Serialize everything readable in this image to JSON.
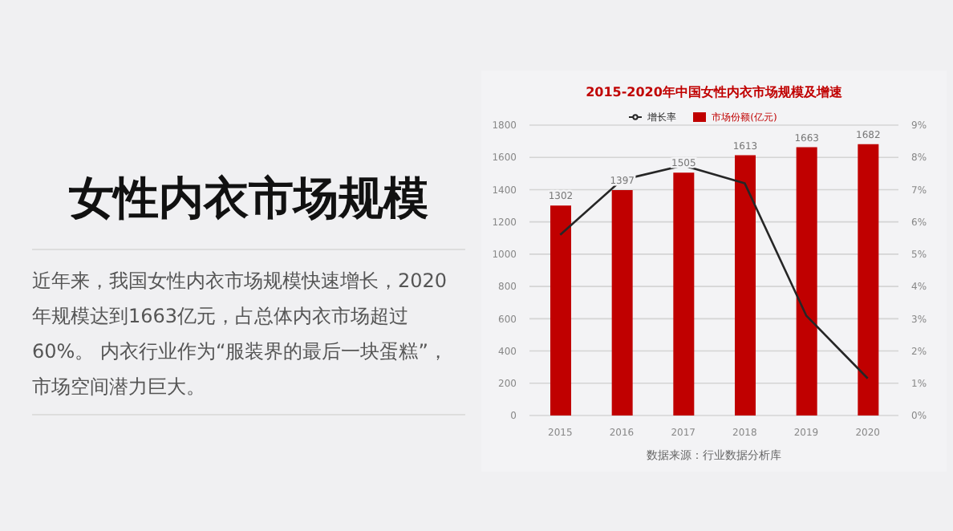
{
  "chart_data": {
    "type": "bar",
    "title": "2015-2020年中国女性内衣市场规模及增速",
    "annotations": [
      "女性内衣市场规模",
      "近年来，我国女性内衣市场规模快速增长，2020年规模达到1663亿元，占总体内衣市场超过60%。 内衣行业作为“服装界的最后一块蛋糕”，市场空间潜力巨大。",
      "数据来源：行业数据分析库"
    ],
    "categories": [
      "2015",
      "2016",
      "2017",
      "2018",
      "2019",
      "2020"
    ],
    "series": [
      {
        "name": "市场份额(亿元)",
        "color": "#c00000",
        "values": [
          1302,
          1397,
          1505,
          1613,
          1663,
          1682
        ],
        "value_labels": [
          "1302",
          "1397",
          "1505",
          "1613",
          "1663",
          "1682"
        ]
      },
      {
        "name": "增长率",
        "type": "line",
        "axis": "y2",
        "color": "#262626",
        "values": [
          5.6,
          7.3,
          7.75,
          7.2,
          3.1,
          1.15
        ]
      }
    ],
    "ylim": [
      0,
      1800
    ],
    "yticks": [
      0,
      200,
      400,
      600,
      800,
      1000,
      1200,
      1400,
      1600,
      1800
    ],
    "y2lim": [
      0,
      9
    ],
    "y2ticks": [
      {
        "value": 0,
        "label": "0%"
      },
      {
        "value": 1,
        "label": "1%"
      },
      {
        "value": 2,
        "label": "2%"
      },
      {
        "value": 3,
        "label": "3%"
      },
      {
        "value": 4,
        "label": "4%"
      },
      {
        "value": 5,
        "label": "5%"
      },
      {
        "value": 6,
        "label": "6%"
      },
      {
        "value": 7,
        "label": "7%"
      },
      {
        "value": 8,
        "label": "8%"
      },
      {
        "value": 9,
        "label": "9%"
      }
    ],
    "grid": "y",
    "legend": "top",
    "marker": "none",
    "line_style": "solid"
  }
}
